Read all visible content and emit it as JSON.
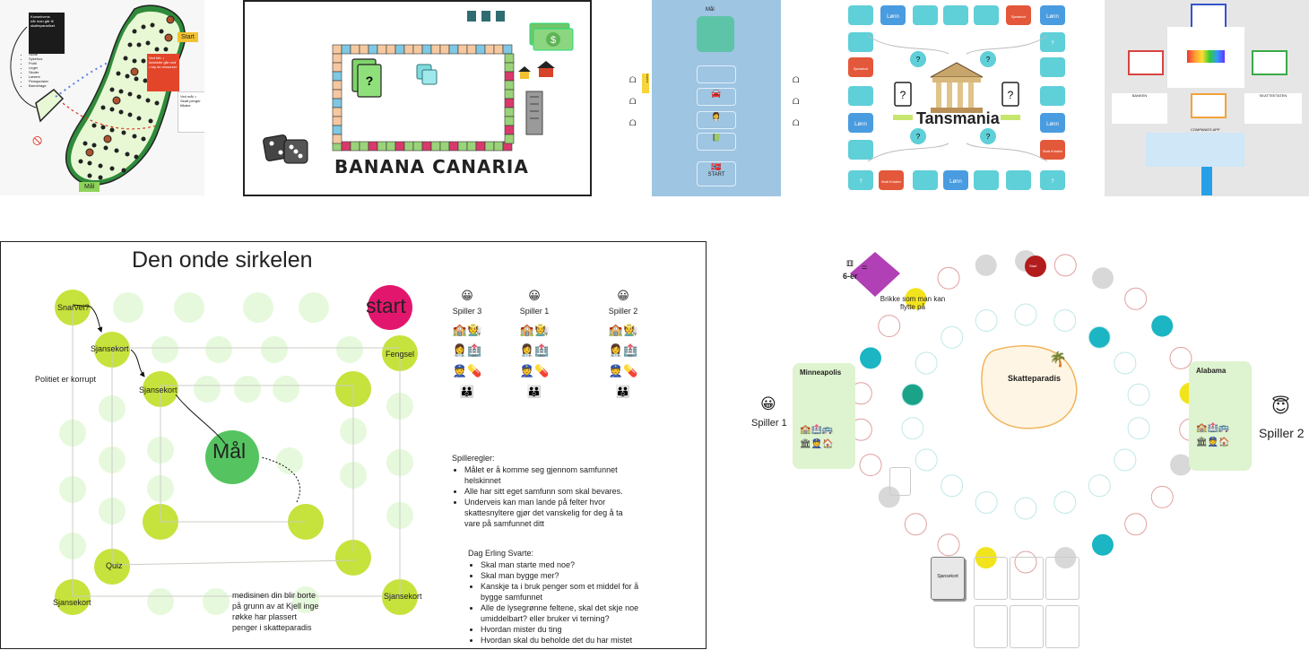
{
  "colors": {
    "light_green": "#e6f9dc",
    "lime": "#c6e23c",
    "start_pink": "#e3166e",
    "teal": "#5fcfd8",
    "orange_red": "#e3583a",
    "blue_tile": "#4a9ce0",
    "sky_panel": "#9ec5e2",
    "dark_green": "#55c460"
  },
  "panel_norway": {
    "start_label": "Start",
    "goal_label": "Mål",
    "note_title": "Konsekvens",
    "note_body": "når man går til skatteparadiset",
    "bullets": [
      "Skole",
      "Sykehus",
      "Politi",
      "Leger",
      "Skoler",
      "Lærere",
      "Pensjonister",
      "Barnehage"
    ],
    "red_note": "Ved felt: • inntekter går ned • tap av ressurser",
    "white_note": "Ved mål: • Skatt penger tilbake"
  },
  "panel_banana": {
    "title": "BANANA CANARIA",
    "card_mark": "?"
  },
  "panel_blue": {
    "top_label": "Mål",
    "bottom_label": "START",
    "chip_label": "Startfelt"
  },
  "panel_tansmania": {
    "title": "Tansmania",
    "tile_lonn": "Lønn",
    "tile_q": "?",
    "tile_sjanse": "Sjansekort",
    "tile_skatt": "Skatt til staten"
  },
  "panel_grey": {
    "label_left": "BANKEN",
    "label_right": "SKATTEETATEN",
    "label_bottom": "COMPANIES APP"
  },
  "panel_circle": {
    "title": "Den onde sirkelen",
    "start": "start",
    "snarvei": "Snarvei?",
    "sjansekort": "Sjansekort",
    "fengsel": "Fengsel",
    "maal": "Mål",
    "quiz": "Quiz",
    "politiet": "Politiet er korrupt",
    "medisinen": "medisinen din blir borte på grunn av at Kjell inge røkke har plassert penger i skatteparadis",
    "players": [
      "Spiller 3",
      "Spiller 1",
      "Spiller 2"
    ],
    "rules_title": "Spilleregler:",
    "rules": [
      "Målet er å komme seg gjennom samfunnet helskinnet",
      "Alle har sitt eget samfunn som skal bevares.",
      "Underveis kan man lande på felter hvor skattesnyltere gjør det vanskelig for deg å ta vare på samfunnet ditt"
    ],
    "dag_title": "Dag Erling Svarte:",
    "dag_items": [
      "Skal man starte med noe?",
      "Skal man bygge mer?",
      "Kanskje ta i bruk penger som et middel for å bygge samfunnet",
      "Alle de lysegrønne feltene, skal det skje noe umiddelbart? eller bruker vi terning?",
      "Hvordan mister du ting",
      "Hvordan skal du beholde det du har mistet"
    ]
  },
  "panel_paradise": {
    "dice_label": "6-er",
    "equals": "=",
    "piece_caption": "Brikke som man kan flytte på",
    "paradise": "Skatteparadis",
    "player1": "Spiller 1",
    "player2": "Spiller 2",
    "city_left": "Minneapolis",
    "city_right": "Alabama",
    "deck": "Sjansekort",
    "start": "Start"
  }
}
